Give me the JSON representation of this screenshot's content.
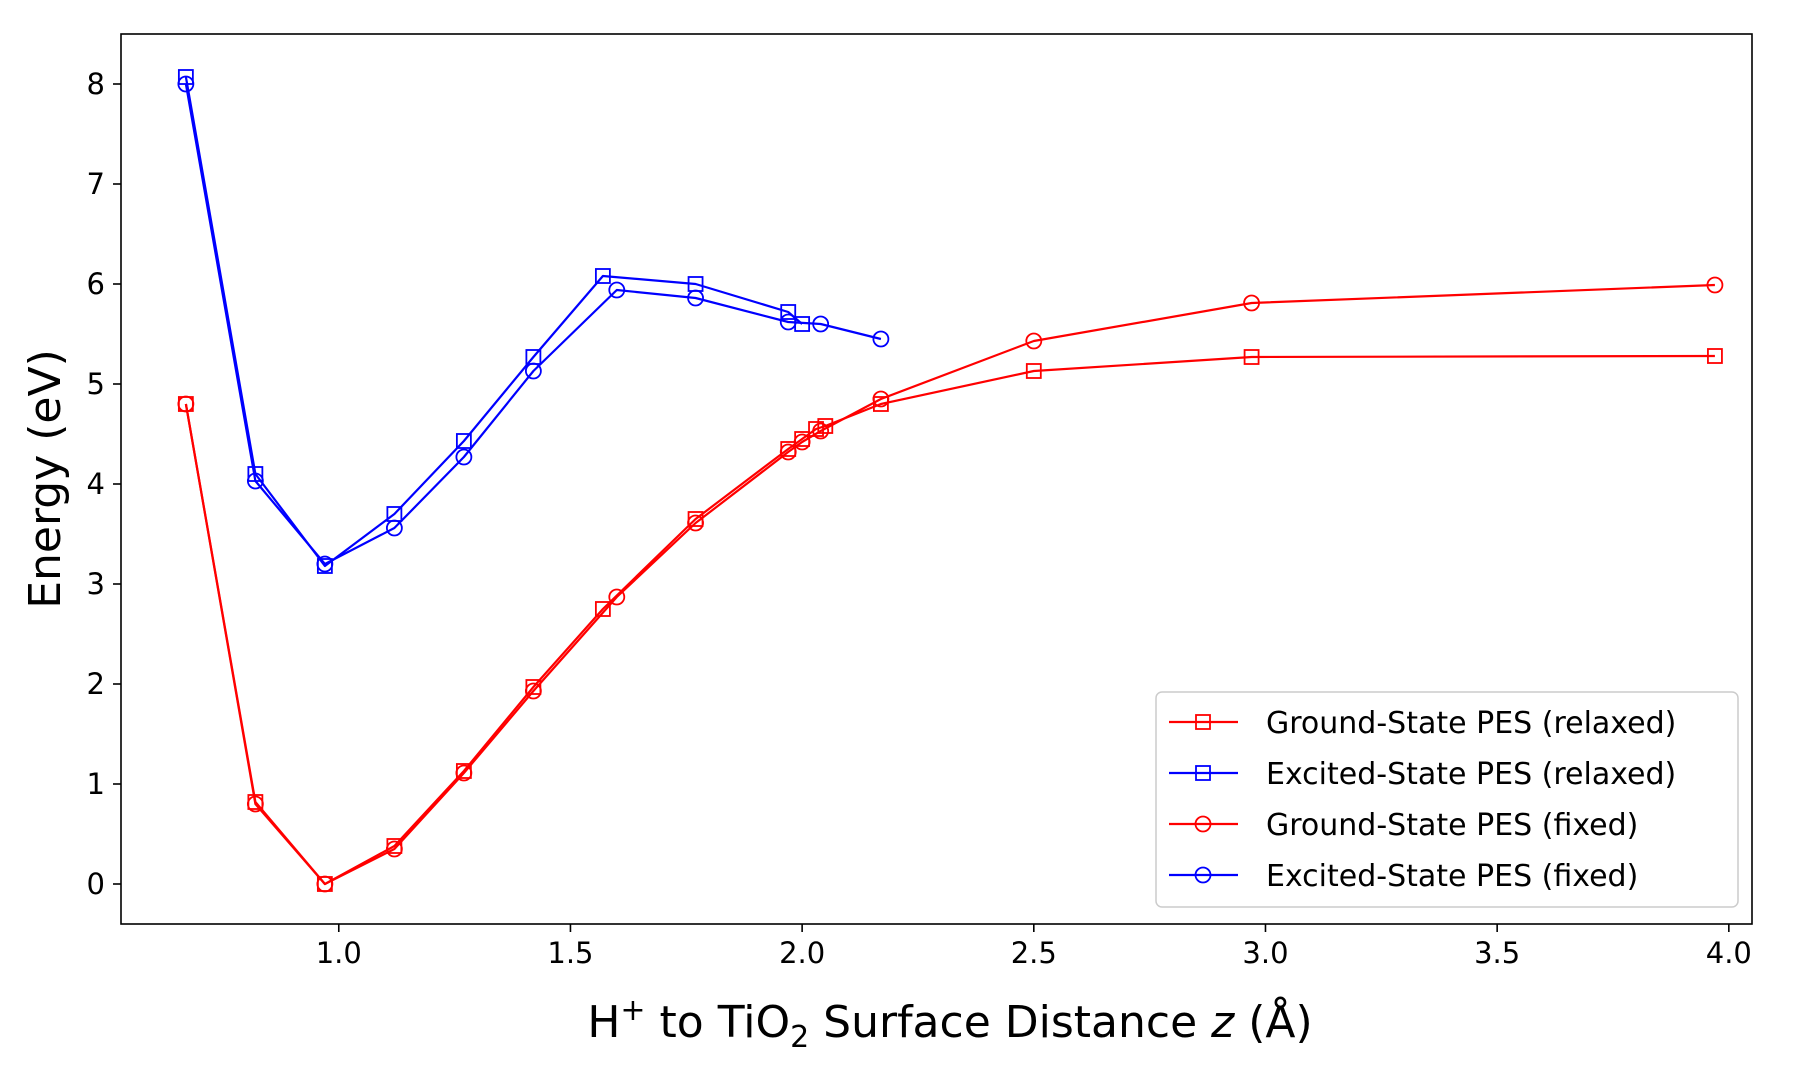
{
  "chart_data": {
    "type": "line",
    "title": "",
    "xlabel": {
      "prefix": "H",
      "sup": "+",
      "middle": " to TiO",
      "sub": "2",
      "suffix": " Surface Distance ",
      "variable": "z",
      "unit": " (Å)"
    },
    "ylabel": "Energy (eV)",
    "xlim": [
      0.53,
      4.05
    ],
    "ylim": [
      -0.4,
      8.5
    ],
    "xticks": [
      1.0,
      1.5,
      2.0,
      2.5,
      3.0,
      3.5,
      4.0
    ],
    "xtick_labels": [
      "1.0",
      "1.5",
      "2.0",
      "2.5",
      "3.0",
      "3.5",
      "4.0"
    ],
    "yticks": [
      0,
      1,
      2,
      3,
      4,
      5,
      6,
      7,
      8
    ],
    "ytick_labels": [
      "0",
      "1",
      "2",
      "3",
      "4",
      "5",
      "6",
      "7",
      "8"
    ],
    "grid": false,
    "legend_position": "bottom-right",
    "series": [
      {
        "name": "Ground-State PES (relaxed)",
        "color": "#ff0000",
        "marker": "square",
        "x": [
          0.67,
          0.82,
          0.97,
          1.12,
          1.27,
          1.42,
          1.57,
          1.77,
          1.97,
          2.0,
          2.03,
          2.05,
          2.17,
          2.5,
          2.97,
          3.97
        ],
        "y": [
          4.8,
          0.82,
          0.0,
          0.38,
          1.13,
          1.97,
          2.75,
          3.65,
          4.35,
          4.45,
          4.55,
          4.58,
          4.8,
          5.13,
          5.27,
          5.28
        ]
      },
      {
        "name": "Excited-State PES (relaxed)",
        "color": "#0000ff",
        "marker": "square",
        "x": [
          0.67,
          0.82,
          0.97,
          1.12,
          1.27,
          1.42,
          1.57,
          1.77,
          1.97,
          2.0
        ],
        "y": [
          8.07,
          4.1,
          3.18,
          3.7,
          4.43,
          5.27,
          6.08,
          6.0,
          5.72,
          5.6
        ]
      },
      {
        "name": "Ground-State PES (fixed)",
        "color": "#ff0000",
        "marker": "circle",
        "x": [
          0.67,
          0.82,
          0.97,
          1.12,
          1.27,
          1.42,
          1.6,
          1.77,
          1.97,
          2.0,
          2.04,
          2.17,
          2.5,
          2.97,
          3.97
        ],
        "y": [
          4.8,
          0.8,
          0.0,
          0.35,
          1.11,
          1.93,
          2.87,
          3.61,
          4.32,
          4.42,
          4.53,
          4.85,
          5.43,
          5.81,
          5.99
        ]
      },
      {
        "name": "Excited-State PES (fixed)",
        "color": "#0000ff",
        "marker": "circle",
        "x": [
          0.67,
          0.82,
          0.97,
          1.12,
          1.27,
          1.42,
          1.6,
          1.77,
          1.97,
          2.04,
          2.17
        ],
        "y": [
          8.0,
          4.03,
          3.2,
          3.56,
          4.27,
          5.13,
          5.94,
          5.86,
          5.62,
          5.6,
          5.45
        ]
      }
    ]
  }
}
